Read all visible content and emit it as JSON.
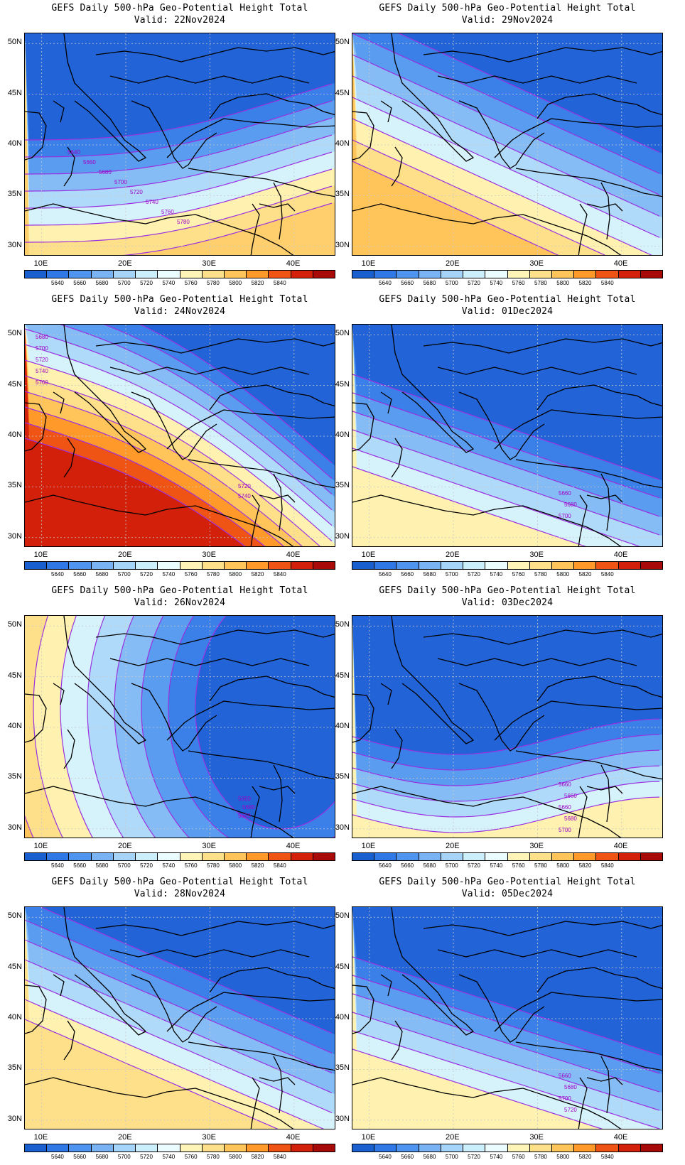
{
  "colorbar": {
    "labels": [
      "5640",
      "5660",
      "5680",
      "5700",
      "5720",
      "5740",
      "5760",
      "5780",
      "5800",
      "5820",
      "5840"
    ],
    "colors": [
      "#1a5fd0",
      "#2f78e6",
      "#4f95ef",
      "#7ab3f4",
      "#a6d3f8",
      "#cbeefb",
      "#eafcfd",
      "#fff4b8",
      "#ffe08a",
      "#ffc45a",
      "#ff9a2a",
      "#f05414",
      "#d2200a",
      "#a80a0a"
    ]
  },
  "axes": {
    "lat_labels": [
      "50N",
      "45N",
      "40N",
      "35N",
      "30N"
    ],
    "lon_labels": [
      "10E",
      "20E",
      "30E",
      "40E"
    ]
  },
  "panels": [
    {
      "title": "GEFS Daily 500-hPa Geo-Potential Height Total",
      "valid": "Valid: 22Nov2024",
      "contour_labels": [
        "5640",
        "5660",
        "5680",
        "5700",
        "5720",
        "5740",
        "5760",
        "5780"
      ],
      "band_colors": [
        "#2264d8",
        "#3b80e8",
        "#5a9cf0",
        "#86bcf6",
        "#b0daf9",
        "#d6f3fc",
        "#fff2b0",
        "#ffe08a",
        "#ffcf6e"
      ]
    },
    {
      "title": "GEFS Daily 500-hPa Geo-Potential Height Total",
      "valid": "Valid: 29Nov2024",
      "contour_labels": [],
      "band_colors": [
        "#2264d8",
        "#3b80e8",
        "#5a9cf0",
        "#86bcf6",
        "#b0daf9",
        "#d6f3fc",
        "#fff2b0",
        "#ffe08a",
        "#ffc45a"
      ]
    },
    {
      "title": "GEFS Daily 500-hPa Geo-Potential Height Total",
      "valid": "Valid: 24Nov2024",
      "contour_labels": [
        "5680",
        "5700",
        "5720",
        "5740",
        "5760",
        "5720",
        "5740"
      ],
      "band_colors": [
        "#2264d8",
        "#3b80e8",
        "#5a9cf0",
        "#86bcf6",
        "#b0daf9",
        "#d6f3fc",
        "#fff2b0",
        "#ffe08a",
        "#ffc45a",
        "#ff9a2a",
        "#f05414",
        "#d2200a"
      ]
    },
    {
      "title": "GEFS Daily 500-hPa Geo-Potential Height Total",
      "valid": "Valid: 01Dec2024",
      "contour_labels": [
        "5660",
        "5680",
        "5700"
      ],
      "band_colors": [
        "#2264d8",
        "#3b80e8",
        "#5a9cf0",
        "#86bcf6",
        "#b0daf9",
        "#d6f3fc",
        "#fff2b0"
      ]
    },
    {
      "title": "GEFS Daily 500-hPa Geo-Potential Height Total",
      "valid": "Valid: 26Nov2024",
      "contour_labels": [
        "5660",
        "5680",
        "5680"
      ],
      "band_colors": [
        "#2264d8",
        "#3b80e8",
        "#5a9cf0",
        "#86bcf6",
        "#b0daf9",
        "#d6f3fc",
        "#fff2b0",
        "#ffe08a",
        "#ffc45a"
      ]
    },
    {
      "title": "GEFS Daily 500-hPa Geo-Potential Height Total",
      "valid": "Valid: 03Dec2024",
      "contour_labels": [
        "5660",
        "5660",
        "5660",
        "5680",
        "5700",
        "5720"
      ],
      "band_colors": [
        "#2264d8",
        "#3b80e8",
        "#5a9cf0",
        "#86bcf6",
        "#b0daf9",
        "#d6f3fc",
        "#fff2b0"
      ]
    },
    {
      "title": "GEFS Daily 500-hPa Geo-Potential Height Total",
      "valid": "Valid: 28Nov2024",
      "contour_labels": [],
      "band_colors": [
        "#2264d8",
        "#3b80e8",
        "#5a9cf0",
        "#86bcf6",
        "#b0daf9",
        "#d6f3fc",
        "#fff2b0",
        "#ffe08a"
      ]
    },
    {
      "title": "GEFS Daily 500-hPa Geo-Potential Height Total",
      "valid": "Valid: 05Dec2024",
      "contour_labels": [
        "5660",
        "5680",
        "5700",
        "5720"
      ],
      "band_colors": [
        "#2264d8",
        "#3b80e8",
        "#5a9cf0",
        "#86bcf6",
        "#b0daf9",
        "#d6f3fc",
        "#fff2b0"
      ]
    }
  ],
  "colors": {
    "contour": "#9a30e0",
    "border": "#000000",
    "grid": "#c8c8c8"
  }
}
